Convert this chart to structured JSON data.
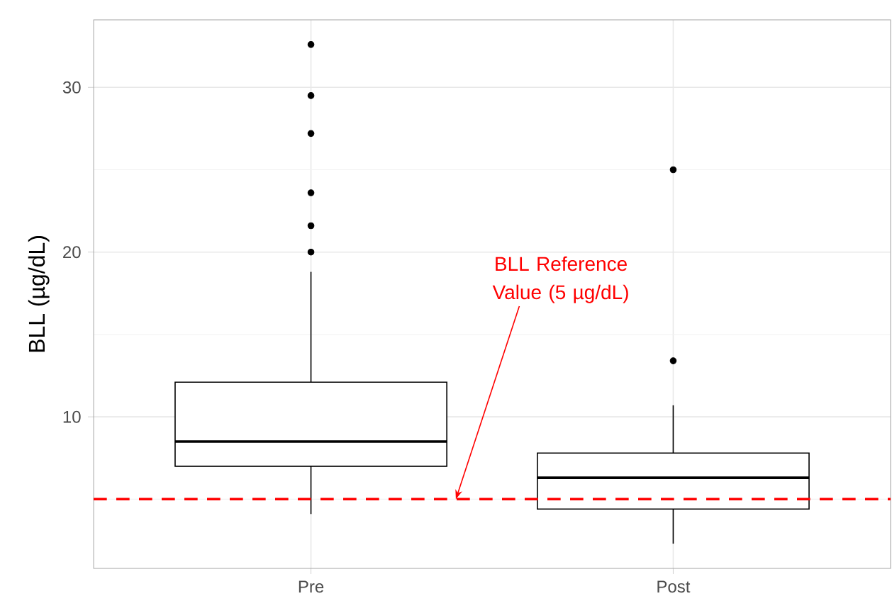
{
  "chart_data": {
    "type": "box",
    "ylabel": "BLL (µg/dL)",
    "categories": [
      "Pre",
      "Post"
    ],
    "boxes": [
      {
        "low": 4.1,
        "q1": 7.0,
        "median": 8.5,
        "q3": 12.1,
        "high": 18.8,
        "outliers": [
          20.0,
          21.6,
          23.6,
          27.2,
          29.5,
          32.6
        ]
      },
      {
        "low": 2.3,
        "q1": 4.4,
        "median": 6.3,
        "q3": 7.8,
        "high": 10.7,
        "outliers": [
          13.4,
          25.0
        ]
      }
    ],
    "ylim": [
      0.8,
      34.1
    ],
    "yticks": [
      10,
      20,
      30
    ],
    "grid": true,
    "ref_lines": [
      {
        "axis": "y",
        "value": 5,
        "label": "BLL Reference Value (5 µg/dL)",
        "color": "#ff0000",
        "line_style": "dashed"
      }
    ]
  }
}
